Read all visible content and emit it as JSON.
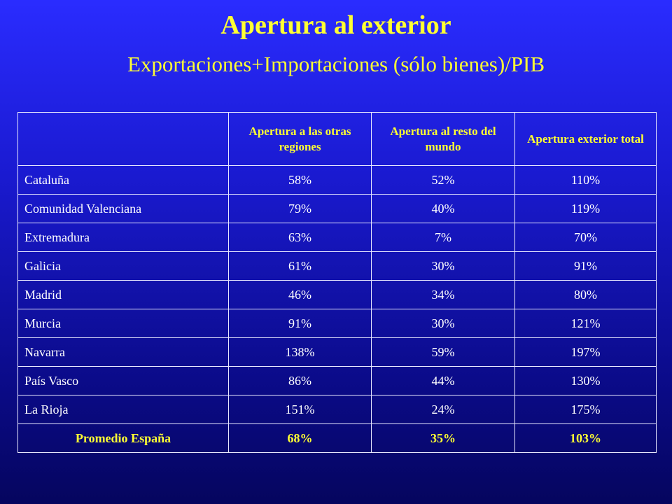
{
  "header": {
    "title": "Apertura al exterior",
    "subtitle": "Exportaciones+Importaciones (sólo bienes)/PIB"
  },
  "table": {
    "columns": [
      "",
      "Apertura a las otras regiones",
      "Apertura al resto del mundo",
      "Apertura exterior total"
    ],
    "rows": [
      [
        "Cataluña",
        "58%",
        "52%",
        "110%"
      ],
      [
        "Comunidad Valenciana",
        "79%",
        "40%",
        "119%"
      ],
      [
        "Extremadura",
        "63%",
        "7%",
        "70%"
      ],
      [
        "Galicia",
        "61%",
        "30%",
        "91%"
      ],
      [
        "Madrid",
        "46%",
        "34%",
        "80%"
      ],
      [
        "Murcia",
        "91%",
        "30%",
        "121%"
      ],
      [
        "Navarra",
        "138%",
        "59%",
        "197%"
      ],
      [
        "País Vasco",
        "86%",
        "44%",
        "130%"
      ],
      [
        "La Rioja",
        "151%",
        "24%",
        "175%"
      ]
    ],
    "footer": [
      "Promedio España",
      "68%",
      "35%",
      "103%"
    ]
  }
}
